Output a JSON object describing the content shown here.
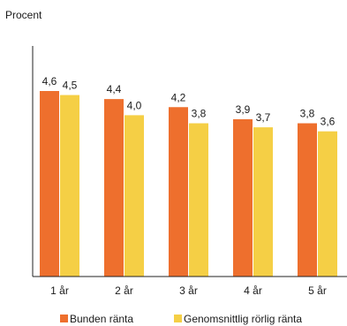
{
  "colors": {
    "bunden": "#ee6f2d",
    "rorlig": "#f5cf45",
    "axis": "#222222"
  },
  "chart_data": {
    "type": "bar",
    "title": "",
    "ylabel": "Procent",
    "xlabel": "",
    "categories": [
      "1 år",
      "2 år",
      "3 år",
      "4 år",
      "5 år"
    ],
    "series": [
      {
        "name": "Bunden ränta",
        "values": [
          4.6,
          4.4,
          4.2,
          3.9,
          3.8
        ],
        "labels": [
          "4,6",
          "4,4",
          "4,2",
          "3,9",
          "3,8"
        ]
      },
      {
        "name": "Genomsnittlig rörlig ränta",
        "values": [
          4.5,
          4.0,
          3.8,
          3.7,
          3.6
        ],
        "labels": [
          "4,5",
          "4,0",
          "3,8",
          "3,7",
          "3,6"
        ]
      }
    ],
    "ylim": [
      0,
      5.6
    ],
    "grid": false,
    "legend": "bottom"
  }
}
